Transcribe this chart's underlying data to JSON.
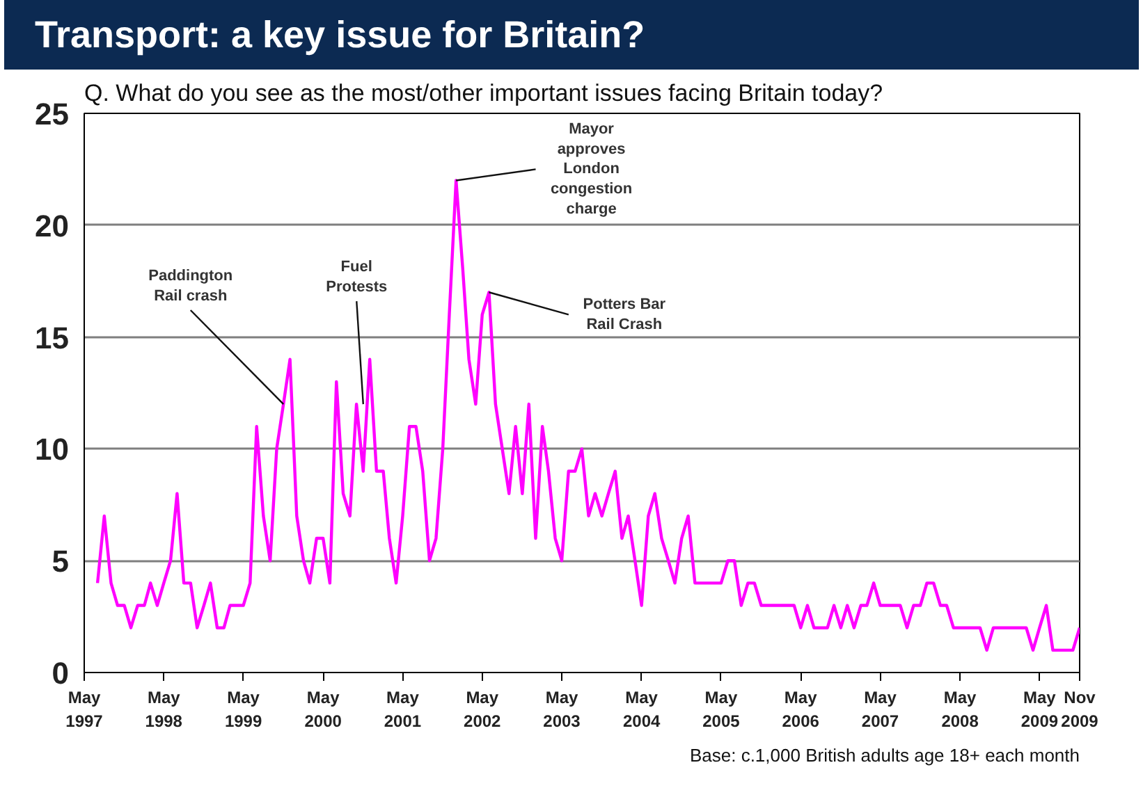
{
  "chart_data": {
    "type": "line",
    "title": "Transport: a key issue for Britain?",
    "subtitle": "Q. What do you see as the most/other important issues facing Britain today?",
    "x": [
      "1997-07",
      "1997-08",
      "1997-09",
      "1997-10",
      "1997-11",
      "1997-12",
      "1998-01",
      "1998-02",
      "1998-03",
      "1998-04",
      "1998-05",
      "1998-06",
      "1998-07",
      "1998-08",
      "1998-09",
      "1998-10",
      "1998-11",
      "1998-12",
      "1999-01",
      "1999-02",
      "1999-03",
      "1999-04",
      "1999-05",
      "1999-06",
      "1999-07",
      "1999-08",
      "1999-09",
      "1999-10",
      "1999-11",
      "1999-12",
      "2000-01",
      "2000-02",
      "2000-03",
      "2000-04",
      "2000-05",
      "2000-06",
      "2000-07",
      "2000-08",
      "2000-09",
      "2000-10",
      "2000-11",
      "2000-12",
      "2001-01",
      "2001-02",
      "2001-03",
      "2001-04",
      "2001-05",
      "2001-06",
      "2001-07",
      "2001-08",
      "2001-09",
      "2001-10",
      "2001-11",
      "2001-12",
      "2002-01",
      "2002-02",
      "2002-03",
      "2002-04",
      "2002-05",
      "2002-06",
      "2002-07",
      "2002-08",
      "2002-09",
      "2002-10",
      "2002-11",
      "2002-12",
      "2003-01",
      "2003-02",
      "2003-03",
      "2003-04",
      "2003-05",
      "2003-06",
      "2003-07",
      "2003-08",
      "2003-09",
      "2003-10",
      "2003-11",
      "2003-12",
      "2004-01",
      "2004-02",
      "2004-03",
      "2004-04",
      "2004-05",
      "2004-06",
      "2004-07",
      "2004-08",
      "2004-09",
      "2004-10",
      "2004-11",
      "2004-12",
      "2005-01",
      "2005-02",
      "2005-03",
      "2005-04",
      "2005-05",
      "2005-06",
      "2005-07",
      "2005-08",
      "2005-09",
      "2005-10",
      "2005-11",
      "2005-12",
      "2006-01",
      "2006-02",
      "2006-03",
      "2006-04",
      "2006-05",
      "2006-06",
      "2006-07",
      "2006-08",
      "2006-09",
      "2006-10",
      "2006-11",
      "2006-12",
      "2007-01",
      "2007-02",
      "2007-03",
      "2007-04",
      "2007-05",
      "2007-06",
      "2007-07",
      "2007-08",
      "2007-09",
      "2007-10",
      "2007-11",
      "2007-12",
      "2008-01",
      "2008-02",
      "2008-03",
      "2008-04",
      "2008-05",
      "2008-06",
      "2008-07",
      "2008-08",
      "2008-09",
      "2008-10",
      "2008-11",
      "2008-12",
      "2009-01",
      "2009-02",
      "2009-03",
      "2009-04",
      "2009-05",
      "2009-06",
      "2009-07",
      "2009-08",
      "2009-09",
      "2009-10",
      "2009-11"
    ],
    "series": [
      {
        "color": "#ff00ff",
        "values": [
          4,
          7,
          4,
          3,
          3,
          2,
          3,
          3,
          4,
          3,
          4,
          5,
          8,
          4,
          4,
          2,
          3,
          4,
          2,
          2,
          3,
          3,
          3,
          4,
          11,
          7,
          5,
          10,
          12,
          14,
          7,
          5,
          4,
          6,
          6,
          4,
          13,
          8,
          7,
          12,
          9,
          14,
          9,
          9,
          6,
          4,
          7,
          11,
          11,
          9,
          5,
          6,
          10,
          16,
          22,
          18,
          14,
          12,
          16,
          17,
          12,
          10,
          8,
          11,
          8,
          12,
          6,
          11,
          9,
          6,
          5,
          9,
          9,
          10,
          7,
          8,
          7,
          8,
          9,
          6,
          7,
          5,
          3,
          7,
          8,
          6,
          5,
          4,
          6,
          7,
          4,
          4,
          4,
          4,
          4,
          5,
          5,
          3,
          4,
          4,
          3,
          3,
          3,
          3,
          3,
          3,
          2,
          3,
          2,
          2,
          2,
          3,
          2,
          3,
          2,
          3,
          3,
          4,
          3,
          3,
          3,
          3,
          2,
          3,
          3,
          4,
          4,
          3,
          3,
          2,
          2,
          2,
          2,
          2,
          1,
          2,
          2,
          2,
          2,
          2,
          2,
          1,
          2,
          3,
          1,
          1,
          1,
          1,
          2
        ]
      }
    ],
    "xlim": [
      "1997-05",
      "2009-11"
    ],
    "xticks": [
      {
        "value": "1997-05",
        "label": "May\n1997"
      },
      {
        "value": "1998-05",
        "label": "May\n1998"
      },
      {
        "value": "1999-05",
        "label": "May\n1999"
      },
      {
        "value": "2000-05",
        "label": "May\n2000"
      },
      {
        "value": "2001-05",
        "label": "May\n2001"
      },
      {
        "value": "2002-05",
        "label": "May\n2002"
      },
      {
        "value": "2003-05",
        "label": "May\n2003"
      },
      {
        "value": "2004-05",
        "label": "May\n2004"
      },
      {
        "value": "2005-05",
        "label": "May\n2005"
      },
      {
        "value": "2006-05",
        "label": "May\n2006"
      },
      {
        "value": "2007-05",
        "label": "May\n2007"
      },
      {
        "value": "2008-05",
        "label": "May\n2008"
      },
      {
        "value": "2009-05",
        "label": "May\n2009"
      },
      {
        "value": "2009-11",
        "label": "Nov\n2009"
      }
    ],
    "ylim": [
      0,
      25
    ],
    "yticks": [
      0,
      5,
      10,
      15,
      20,
      25
    ],
    "grid": "y",
    "marker": "none",
    "line_style": "solid",
    "annotations": [
      {
        "text": "Paddington\nRail crash",
        "x": "1999-11",
        "y": 12
      },
      {
        "text": "Fuel\nProtests",
        "x": "2000-11",
        "y": 12
      },
      {
        "text": "Mayor\napproves\nLondon\ncongestion\ncharge",
        "x": "2002-01",
        "y": 22
      },
      {
        "text": "Potters Bar\nRail Crash",
        "x": "2002-06",
        "y": 17
      },
      "Base: c.1,000 British adults age 18+ each month"
    ]
  }
}
